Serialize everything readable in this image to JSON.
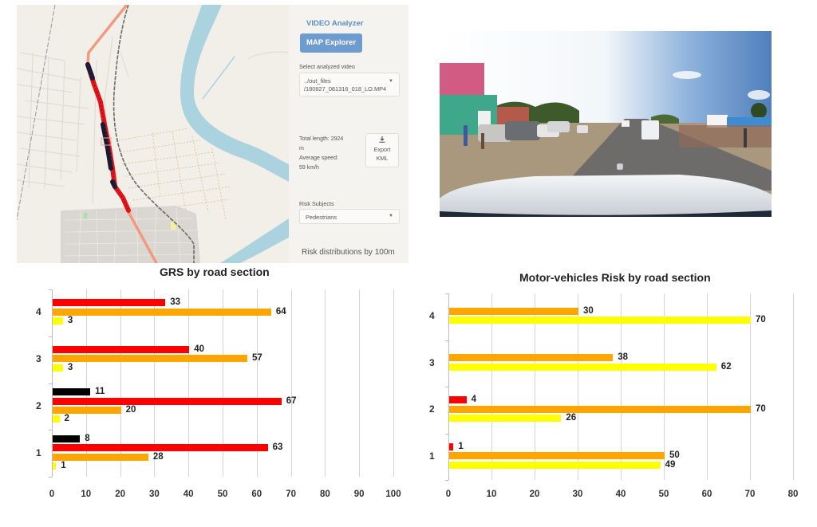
{
  "colors": {
    "extreme": "#000000",
    "high": "#ff0000",
    "medium": "#ffa500",
    "low": "#ffff00",
    "accent": "#6e9cce",
    "accent_text": "#5b8fc4"
  },
  "sidebar": {
    "title": "VIDEO Analyzer",
    "map_explorer_button": "MAP Explorer",
    "video_select_label": "Select analyzed video",
    "video_select_value_line1": "../out_files",
    "video_select_value_line2": "/180827_081316_018_LO.MP4",
    "stats_line1": "Total length: 2924",
    "stats_line2": "m",
    "stats_line3": "Average speed:",
    "stats_line4": "59 km/h",
    "export_icon": "download-icon",
    "export_label_line1": "Export",
    "export_label_line2": "KML",
    "risk_subjects_label": "Risk Subjects",
    "risk_subjects_value": "Pedestrians",
    "footer": "Risk distributions by 100m"
  },
  "video": {
    "description": "Dashcam frame of a road with parked vehicles, pedestrians and roadside market"
  },
  "chart_data": [
    {
      "type": "bar",
      "orientation": "horizontal",
      "title": "GRS by road section",
      "categories": [
        "1",
        "2",
        "3",
        "4"
      ],
      "xlim": [
        0,
        100
      ],
      "xticks": [
        0,
        10,
        20,
        30,
        40,
        50,
        60,
        70,
        80,
        90,
        100
      ],
      "grid": true,
      "legend": "none",
      "series": [
        {
          "name": "black",
          "color": "#000000",
          "values": [
            8,
            11,
            null,
            null
          ]
        },
        {
          "name": "red",
          "color": "#ff0000",
          "values": [
            63,
            67,
            40,
            33
          ]
        },
        {
          "name": "orange",
          "color": "#ffa500",
          "values": [
            28,
            20,
            57,
            64
          ]
        },
        {
          "name": "yellow",
          "color": "#ffff00",
          "values": [
            1,
            2,
            3,
            3
          ]
        }
      ]
    },
    {
      "type": "bar",
      "orientation": "horizontal",
      "title": "Motor-vehicles Risk by road section",
      "categories": [
        "1",
        "2",
        "3",
        "4"
      ],
      "xlim": [
        0,
        80
      ],
      "xticks": [
        0,
        10,
        20,
        30,
        40,
        50,
        60,
        70,
        80
      ],
      "grid": true,
      "legend": "none",
      "series": [
        {
          "name": "red",
          "color": "#ff0000",
          "values": [
            1,
            4,
            null,
            null
          ]
        },
        {
          "name": "orange",
          "color": "#ffa500",
          "values": [
            50,
            70,
            38,
            30
          ]
        },
        {
          "name": "yellow",
          "color": "#ffff00",
          "values": [
            49,
            26,
            62,
            70
          ]
        }
      ]
    }
  ],
  "grs": {
    "title": "GRS by road section",
    "ticks": [
      "0",
      "10",
      "20",
      "30",
      "40",
      "50",
      "60",
      "70",
      "80",
      "90",
      "100"
    ],
    "cats": [
      "4",
      "3",
      "2",
      "1"
    ],
    "bars": [
      {
        "cat": "4",
        "color": "#ff0000",
        "value": 33,
        "label": "33"
      },
      {
        "cat": "4",
        "color": "#ffa500",
        "value": 64,
        "label": "64"
      },
      {
        "cat": "4",
        "color": "#ffff00",
        "value": 3,
        "label": "3"
      },
      {
        "cat": "3",
        "color": "#ff0000",
        "value": 40,
        "label": "40"
      },
      {
        "cat": "3",
        "color": "#ffa500",
        "value": 57,
        "label": "57"
      },
      {
        "cat": "3",
        "color": "#ffff00",
        "value": 3,
        "label": "3"
      },
      {
        "cat": "2",
        "color": "#000000",
        "value": 11,
        "label": "11"
      },
      {
        "cat": "2",
        "color": "#ff0000",
        "value": 67,
        "label": "67"
      },
      {
        "cat": "2",
        "color": "#ffa500",
        "value": 20,
        "label": "20"
      },
      {
        "cat": "2",
        "color": "#ffff00",
        "value": 2,
        "label": "2"
      },
      {
        "cat": "1",
        "color": "#000000",
        "value": 8,
        "label": "8"
      },
      {
        "cat": "1",
        "color": "#ff0000",
        "value": 63,
        "label": "63"
      },
      {
        "cat": "1",
        "color": "#ffa500",
        "value": 28,
        "label": "28"
      },
      {
        "cat": "1",
        "color": "#ffff00",
        "value": 1,
        "label": "1"
      }
    ]
  },
  "motor": {
    "title": "Motor-vehicles Risk by road section",
    "ticks": [
      "0",
      "10",
      "20",
      "30",
      "40",
      "50",
      "60",
      "70",
      "80"
    ],
    "cats": [
      "4",
      "3",
      "2",
      "1"
    ],
    "bars": [
      {
        "cat": "4",
        "color": "#ffa500",
        "value": 30,
        "label": "30"
      },
      {
        "cat": "4",
        "color": "#ffff00",
        "value": 70,
        "label": "70"
      },
      {
        "cat": "3",
        "color": "#ffa500",
        "value": 38,
        "label": "38"
      },
      {
        "cat": "3",
        "color": "#ffff00",
        "value": 62,
        "label": "62"
      },
      {
        "cat": "2",
        "color": "#ff0000",
        "value": 4,
        "label": "4"
      },
      {
        "cat": "2",
        "color": "#ffa500",
        "value": 70,
        "label": "70"
      },
      {
        "cat": "2",
        "color": "#ffff00",
        "value": 26,
        "label": "26"
      },
      {
        "cat": "1",
        "color": "#ff0000",
        "value": 1,
        "label": "1"
      },
      {
        "cat": "1",
        "color": "#ffa500",
        "value": 50,
        "label": "50"
      },
      {
        "cat": "1",
        "color": "#ffff00",
        "value": 49,
        "label": "49"
      }
    ]
  }
}
